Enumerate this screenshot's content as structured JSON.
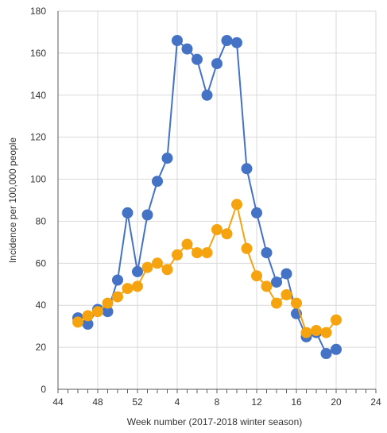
{
  "chart_data": {
    "type": "line",
    "title": "",
    "xlabel": "Week number (2017-2018 winter season)",
    "ylabel": "Incidence per 100,000 people",
    "ylim": [
      0,
      180
    ],
    "y_ticks": [
      0,
      20,
      40,
      60,
      80,
      100,
      120,
      140,
      160,
      180
    ],
    "x_tick_labels": [
      "44",
      "48",
      "52",
      "4",
      "8",
      "12",
      "16",
      "20",
      "24"
    ],
    "grid": true,
    "legend": "none",
    "x_positions": [
      "46",
      "47",
      "48",
      "49",
      "50",
      "51",
      "52",
      "1",
      "2",
      "3",
      "4",
      "5",
      "6",
      "7",
      "8",
      "9",
      "10",
      "11",
      "12",
      "13",
      "14",
      "15",
      "16",
      "17",
      "18",
      "19",
      "20"
    ],
    "series": [
      {
        "color": "#4472c4",
        "x": [
          "46",
          "47",
          "48",
          "49",
          "50",
          "51",
          "52",
          "1",
          "2",
          "3",
          "4",
          "5",
          "6",
          "7",
          "8",
          "9",
          "10",
          "11",
          "12",
          "13",
          "14",
          "15",
          "16",
          "17",
          "18",
          "19",
          "20"
        ],
        "values": [
          34,
          31,
          38,
          37,
          52,
          84,
          56,
          83,
          99,
          110,
          166,
          162,
          157,
          140,
          155,
          166,
          165,
          105,
          84,
          65,
          51,
          55,
          36,
          25,
          27,
          17,
          19
        ]
      },
      {
        "color": "#f5a30f",
        "x": [
          "46",
          "47",
          "48",
          "49",
          "50",
          "51",
          "52",
          "1",
          "2",
          "3",
          "4",
          "5",
          "6",
          "7",
          "8",
          "9",
          "10",
          "11",
          "12",
          "13",
          "14",
          "15",
          "16",
          "17",
          "18",
          "19",
          "20"
        ],
        "values": [
          32,
          35,
          37,
          41,
          44,
          48,
          49,
          58,
          60,
          57,
          64,
          69,
          65,
          65,
          76,
          74,
          88,
          67,
          54,
          49,
          41,
          45,
          41,
          27,
          28,
          27,
          33
        ]
      }
    ]
  }
}
